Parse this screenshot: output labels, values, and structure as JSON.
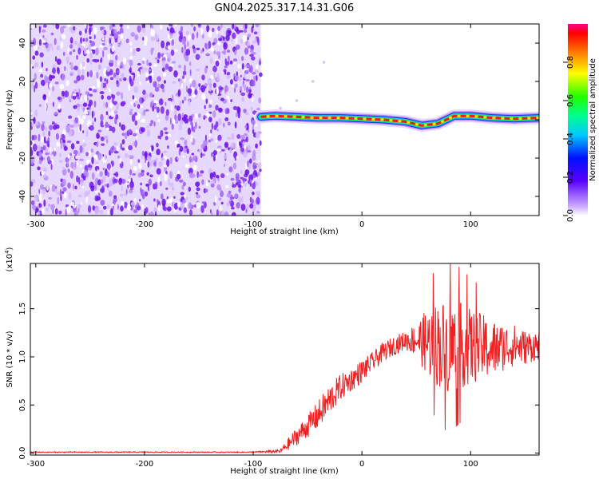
{
  "title": "GN04.2025.317.14.31.G06",
  "chart_data": [
    {
      "type": "heatmap",
      "xlabel": "Height of straight line (km)",
      "ylabel": "Frequency (Hz)",
      "xlim": [
        -305,
        163
      ],
      "ylim": [
        -50,
        50
      ],
      "xticks": [
        -300,
        -200,
        -100,
        0,
        100
      ],
      "xtick_labels": [
        "-300",
        "-200",
        "-100",
        "0",
        "100"
      ],
      "yticks": [
        -40,
        -20,
        0,
        20,
        40
      ],
      "ytick_labels": [
        "-40",
        "-20",
        "0",
        "20",
        "40"
      ],
      "colorbar": {
        "label": "Normalized spectral amplitude",
        "range": [
          0,
          1
        ],
        "ticks": [
          0,
          0.2,
          0.4,
          0.6,
          0.8
        ],
        "tick_labels": [
          "0.0",
          "0.2",
          "0.4",
          "0.6",
          "0.8"
        ],
        "colormap": "rainbow"
      },
      "noise_region_x": [
        -305,
        -93
      ],
      "ridge": [
        {
          "x": -93,
          "y": 1.5
        },
        {
          "x": -80,
          "y": 2
        },
        {
          "x": -60,
          "y": 1.5
        },
        {
          "x": -40,
          "y": 1
        },
        {
          "x": -20,
          "y": 1
        },
        {
          "x": 0,
          "y": 0.5
        },
        {
          "x": 20,
          "y": 0
        },
        {
          "x": 40,
          "y": -1
        },
        {
          "x": 55,
          "y": -3
        },
        {
          "x": 70,
          "y": -2
        },
        {
          "x": 85,
          "y": 2
        },
        {
          "x": 100,
          "y": 2
        },
        {
          "x": 120,
          "y": 1
        },
        {
          "x": 140,
          "y": 0.5
        },
        {
          "x": 163,
          "y": 1
        }
      ]
    },
    {
      "type": "line",
      "xlabel": "Height of straight line (km)",
      "ylabel": "SNR (10 * v/v)",
      "y_scale_note": "(x10",
      "y_scale_exp": "4",
      "xlim": [
        -305,
        163
      ],
      "ylim": [
        -0.02,
        1.97
      ],
      "xticks": [
        -300,
        -200,
        -100,
        0,
        100
      ],
      "xtick_labels": [
        "-300",
        "-200",
        "-100",
        "0",
        "100"
      ],
      "yticks": [
        0,
        0.5,
        1.0,
        1.5
      ],
      "ytick_labels": [
        "0.0",
        "0.5",
        "1.0",
        "1.5"
      ],
      "series": [
        {
          "color": "#ee2222",
          "x": [
            -305,
            -200,
            -100,
            -75,
            -65,
            -50,
            -40,
            -30,
            -20,
            -10,
            0,
            10,
            20,
            30,
            40,
            50,
            60,
            70,
            80,
            90,
            100,
            110,
            120,
            130,
            140,
            150,
            163
          ],
          "y": [
            0.01,
            0.01,
            0.01,
            0.02,
            0.12,
            0.28,
            0.4,
            0.55,
            0.68,
            0.76,
            0.85,
            0.95,
            1.05,
            1.12,
            1.17,
            1.18,
            1.15,
            1.13,
            1.1,
            1.12,
            1.1,
            1.1,
            1.08,
            1.1,
            1.12,
            1.1,
            1.12
          ],
          "spread": [
            0.005,
            0.005,
            0.005,
            0.02,
            0.08,
            0.12,
            0.15,
            0.16,
            0.14,
            0.12,
            0.12,
            0.1,
            0.1,
            0.1,
            0.1,
            0.18,
            0.35,
            0.45,
            0.5,
            0.45,
            0.4,
            0.35,
            0.3,
            0.25,
            0.22,
            0.18,
            0.15
          ]
        }
      ]
    }
  ]
}
